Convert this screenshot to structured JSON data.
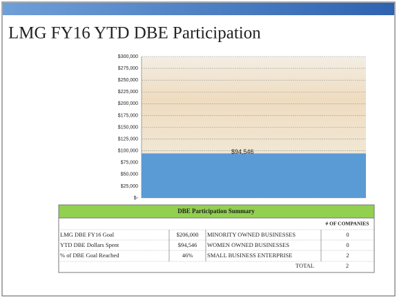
{
  "chart_data": {
    "type": "bar",
    "title": "LMG FY16 YTD DBE Participation",
    "categories": [
      null
    ],
    "values": [
      94546
    ],
    "value_labels": [
      "$94,546"
    ],
    "color": "#5b9bd5",
    "ylim": [
      0,
      300000
    ],
    "yticks": [
      {
        "value": 0,
        "label": "$-"
      },
      {
        "value": 25000,
        "label": "$25,000"
      },
      {
        "value": 50000,
        "label": "$50,000"
      },
      {
        "value": 75000,
        "label": "$75,000"
      },
      {
        "value": 100000,
        "label": "$100,000"
      },
      {
        "value": 125000,
        "label": "$125,000"
      },
      {
        "value": 150000,
        "label": "$150,000"
      },
      {
        "value": 175000,
        "label": "$175,000"
      },
      {
        "value": 200000,
        "label": "$200,000"
      },
      {
        "value": 225000,
        "label": "$225,000"
      },
      {
        "value": 250000,
        "label": "$250,000"
      },
      {
        "value": 275000,
        "label": "$275,000"
      },
      {
        "value": 300000,
        "label": "$300,000"
      }
    ],
    "grid": true
  },
  "table": {
    "title": "DBE Participation Summary",
    "count_header": "# OF COMPANIES",
    "rows": [
      [
        "LMG DBE FY16 Goal",
        "$206,000",
        "MINORITY OWNED BUSINESSES",
        "0"
      ],
      [
        "YTD DBE Dollars Spent",
        "$94,546",
        "WOMEN OWNED BUSINESSES",
        "0"
      ],
      [
        "% of DBE Goal Reached",
        "46%",
        "SMALL BUSINESS ENTERPRISE",
        "2"
      ]
    ],
    "total_label": "TOTAL",
    "total_value": "2"
  }
}
